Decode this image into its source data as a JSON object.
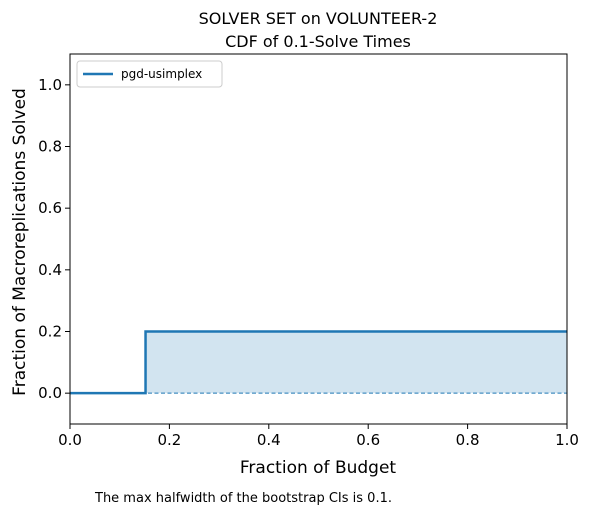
{
  "chart_data": {
    "type": "line",
    "title": "SOLVER SET on VOLUNTEER-2",
    "subtitle": "CDF of 0.1-Solve Times",
    "xlabel": "Fraction of Budget",
    "ylabel": "Fraction of Macroreplications Solved",
    "xlim": [
      0.0,
      1.0
    ],
    "ylim": [
      -0.1,
      1.1
    ],
    "xticks": [
      0.0,
      0.2,
      0.4,
      0.6,
      0.8,
      1.0
    ],
    "xtick_labels": [
      "0.0",
      "0.2",
      "0.4",
      "0.6",
      "0.8",
      "1.0"
    ],
    "yticks": [
      0.0,
      0.2,
      0.4,
      0.6,
      0.8,
      1.0
    ],
    "ytick_labels": [
      "0.0",
      "0.2",
      "0.4",
      "0.6",
      "0.8",
      "1.0"
    ],
    "grid": false,
    "legend_position": "top-left",
    "series": [
      {
        "name": "pgd-usimplex",
        "color": "#1f77b4",
        "step": true,
        "x": [
          0.0,
          0.152,
          1.0
        ],
        "y": [
          0.0,
          0.2,
          0.2
        ],
        "ci_lower": [
          0.0,
          0.0,
          0.0
        ],
        "ci_upper": [
          0.0,
          0.2,
          0.2
        ]
      }
    ],
    "footnote": "The max halfwidth of the bootstrap CIs is 0.1."
  }
}
